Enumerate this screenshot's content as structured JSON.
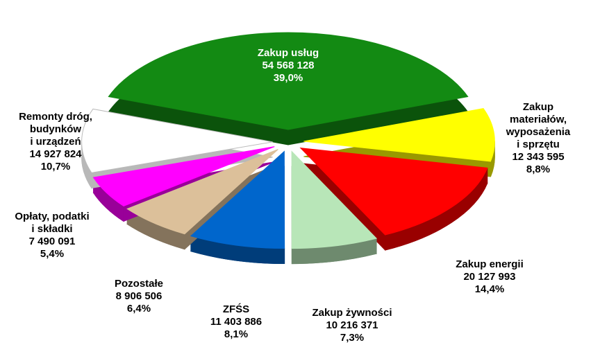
{
  "chart_data": {
    "type": "pie",
    "categories": [
      "Zakup usług",
      "Zakup materiałów,\nwyposażenia\ni sprzętu",
      "Zakup energii",
      "Zakup żywności",
      "ZFŚS",
      "Pozostałe",
      "Opłaty, podatki\ni składki",
      "Remonty dróg,\nbudynków\ni urządzeń"
    ],
    "values": [
      54568128,
      12343595,
      20127993,
      10216371,
      11403886,
      8906506,
      7490091,
      14927824
    ],
    "value_labels": [
      "54 568 128",
      "12 343 595",
      "20 127 993",
      "10 216 371",
      "11 403 886",
      "8 906 506",
      "7 490 091",
      "14 927 824"
    ],
    "percents": [
      39.0,
      8.8,
      14.4,
      7.3,
      8.1,
      6.4,
      5.4,
      10.7
    ],
    "percent_labels": [
      "39,0%",
      "8,8%",
      "14,4%",
      "7,3%",
      "8,1%",
      "6,4%",
      "5,4%",
      "10,7%"
    ],
    "colors": [
      "#138a13",
      "#ffff00",
      "#ff0000",
      "#b8e6b8",
      "#0066cc",
      "#dcc09a",
      "#ff00ff",
      "#ffffff"
    ]
  }
}
